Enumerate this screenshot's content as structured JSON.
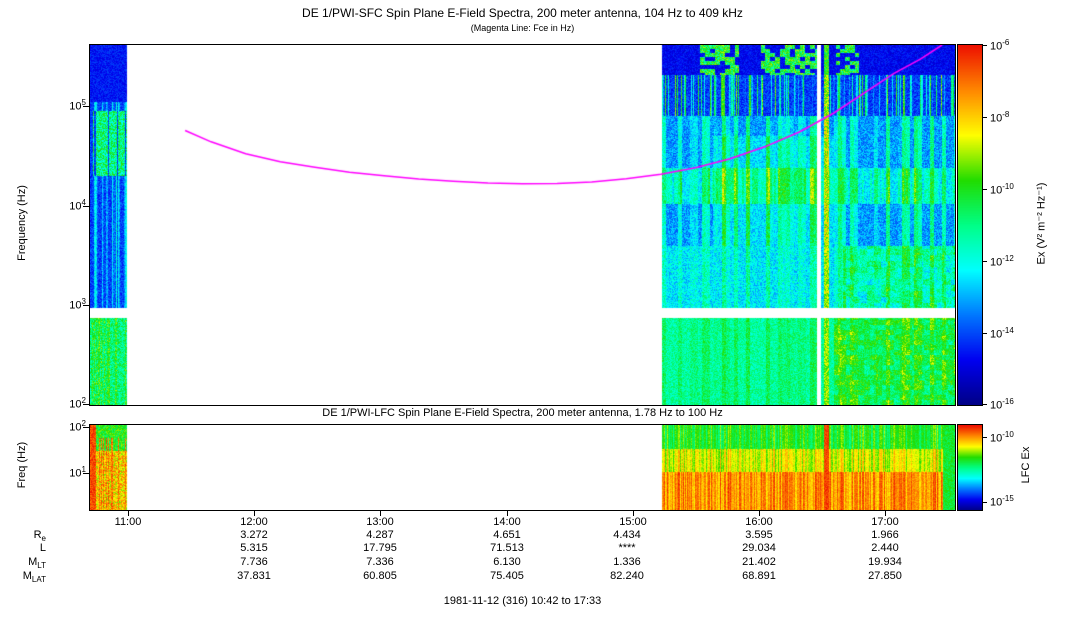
{
  "header": {
    "title": "DE 1/PWI-SFC  Spin Plane E-Field Spectra, 200 meter antenna, 104 Hz to 409 kHz",
    "subtitle": "(Magenta Line: Fce in Hz)"
  },
  "sfc": {
    "ylabel": "Frequency (Hz)",
    "yticks": [
      {
        "base": "10",
        "exp": "5"
      },
      {
        "base": "10",
        "exp": "4"
      },
      {
        "base": "10",
        "exp": "3"
      },
      {
        "base": "10",
        "exp": "2"
      }
    ],
    "colorbar": {
      "label": "Ex (V² m⁻² Hz⁻¹)",
      "ticks": [
        {
          "base": "10",
          "exp": "-6"
        },
        {
          "base": "10",
          "exp": "-8"
        },
        {
          "base": "10",
          "exp": "-10"
        },
        {
          "base": "10",
          "exp": "-12"
        },
        {
          "base": "10",
          "exp": "-14"
        },
        {
          "base": "10",
          "exp": "-16"
        }
      ]
    }
  },
  "lfc": {
    "title": "DE 1/PWI-LFC  Spin Plane E-Field Spectra, 200 meter antenna, 1.78 Hz to 100 Hz",
    "ylabel": "Freq (Hz)",
    "yticks": [
      {
        "base": "10",
        "exp": "2"
      },
      {
        "base": "10",
        "exp": "1"
      }
    ],
    "colorbar": {
      "label": "LFC Ex",
      "ticks": [
        {
          "base": "10",
          "exp": "-10"
        },
        {
          "base": "10",
          "exp": "-15"
        }
      ]
    }
  },
  "xaxis": {
    "ticks": [
      "11:00",
      "12:00",
      "13:00",
      "14:00",
      "15:00",
      "16:00",
      "17:00"
    ]
  },
  "ephemeris": {
    "rows": [
      {
        "label": {
          "base": "R",
          "sub": "e"
        },
        "values": [
          "3.272",
          "4.287",
          "4.651",
          "4.434",
          "3.595",
          "1.966"
        ]
      },
      {
        "label": {
          "base": "L",
          "sub": ""
        },
        "values": [
          "5.315",
          "17.795",
          "71.513",
          "****",
          "29.034",
          "2.440"
        ]
      },
      {
        "label": {
          "base": "M",
          "sub": "LT"
        },
        "values": [
          "7.736",
          "7.336",
          "6.130",
          "1.336",
          "21.402",
          "19.934"
        ]
      },
      {
        "label": {
          "base": "M",
          "sub": "LAT"
        },
        "values": [
          "37.831",
          "60.805",
          "75.405",
          "82.240",
          "68.891",
          "27.850"
        ]
      }
    ]
  },
  "footer": "1981-11-12 (316) 10:42 to 17:33",
  "chart_data": {
    "type": "heatmap",
    "title": "DE 1/PWI-SFC Spin Plane E-Field Spectra, 200 meter antenna, 104 Hz to 409 kHz",
    "subtitle_line": "Magenta Line: Fce in Hz",
    "date": "1981-11-12 (316)",
    "time_start": "10:42",
    "time_end": "17:33",
    "x_ticks": [
      "11:00",
      "12:00",
      "13:00",
      "14:00",
      "15:00",
      "16:00",
      "17:00"
    ],
    "data_intervals_frac": [
      [
        0.0,
        0.042
      ],
      [
        0.661,
        1.0
      ]
    ],
    "features": {
      "white_column_frac": [
        0.8395,
        0.8445
      ],
      "burst_column_frac": [
        0.848,
        0.854
      ]
    },
    "colormap": [
      "#000085",
      "#0000f0",
      "#0077ff",
      "#00ffff",
      "#00ff88",
      "#22dd00",
      "#ffff00",
      "#ff8800",
      "#ee1100"
    ],
    "panels": [
      {
        "name": "SFC",
        "instrument": "DE 1/PWI-SFC",
        "freq_range_hz": [
          104,
          409000
        ],
        "ylog_range": [
          2.0,
          5.612
        ],
        "yticks_hz": [
          100,
          1000,
          10000,
          100000
        ],
        "gap_stripe_log10hz": [
          2.88,
          2.98
        ],
        "colorbar_label": "Ex (V² m⁻² Hz⁻¹)",
        "colorbar_tick_exponents": [
          -6,
          -8,
          -10,
          -12,
          -14,
          -16
        ]
      },
      {
        "name": "LFC",
        "instrument": "DE 1/PWI-LFC",
        "freq_range_hz": [
          1.78,
          100
        ],
        "ylog_range": [
          0.25,
          2.0
        ],
        "yticks_hz": [
          10,
          100
        ],
        "colorbar_label": "LFC Ex",
        "colorbar_tick_exponents": [
          -10,
          -15
        ]
      }
    ],
    "fce_line": {
      "color": "#ff00ff",
      "points_format": "[time_fraction, log10_frequency_hz]",
      "points": [
        [
          0.11,
          4.755
        ],
        [
          0.14,
          4.64
        ],
        [
          0.18,
          4.52
        ],
        [
          0.22,
          4.44
        ],
        [
          0.26,
          4.385
        ],
        [
          0.3,
          4.335
        ],
        [
          0.34,
          4.3
        ],
        [
          0.38,
          4.268
        ],
        [
          0.42,
          4.245
        ],
        [
          0.46,
          4.228
        ],
        [
          0.5,
          4.22
        ],
        [
          0.54,
          4.222
        ],
        [
          0.58,
          4.238
        ],
        [
          0.62,
          4.27
        ],
        [
          0.66,
          4.315
        ],
        [
          0.7,
          4.38
        ],
        [
          0.74,
          4.47
        ],
        [
          0.78,
          4.59
        ],
        [
          0.82,
          4.74
        ],
        [
          0.86,
          4.93
        ],
        [
          0.9,
          5.16
        ],
        [
          0.93,
          5.33
        ],
        [
          0.96,
          5.47
        ],
        [
          0.985,
          5.612
        ]
      ]
    }
  }
}
